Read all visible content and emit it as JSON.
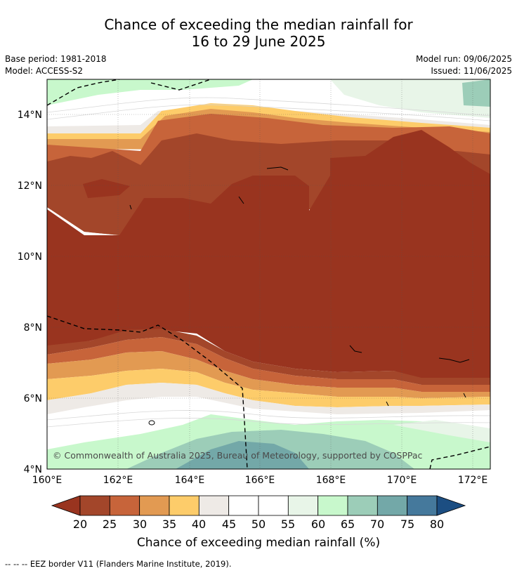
{
  "title_line1": "Chance of exceeding the median rainfall for",
  "title_line2": "16 to 29 June 2025",
  "base_period": "Base period: 1981-2018",
  "model": "Model: ACCESS-S2",
  "model_run": "Model run: 09/06/2025",
  "issued": "Issued: 11/06/2025",
  "map": {
    "lat_labels": [
      "14°N",
      "12°N",
      "10°N",
      "8°N",
      "6°N",
      "4°N"
    ],
    "lon_labels": [
      "160°E",
      "162°E",
      "164°E",
      "166°E",
      "168°E",
      "170°E",
      "172°E"
    ],
    "copyright": "© Commonwealth of Australia 2025, Bureau of Meteorology, supported by COSPPac",
    "region_levels": {
      "north_edge_green": 60,
      "north_white_band": 50,
      "upper_orange": 30,
      "upper_rust": 25,
      "core": 20,
      "lower_rust": 25,
      "lower_orange": 35,
      "lower_yellow": 40,
      "southern_white": 50,
      "southern_green": 65,
      "southern_teal": 70
    }
  },
  "colorbar": {
    "levels": [
      "20",
      "25",
      "30",
      "35",
      "40",
      "45",
      "50",
      "55",
      "60",
      "65",
      "70",
      "75",
      "80"
    ],
    "colors": [
      "#a3462a",
      "#c7643a",
      "#e29a52",
      "#fdcc6a",
      "#eeeae6",
      "#ffffff",
      "#ffffff",
      "#e8f5e8",
      "#c8f8cc",
      "#9ccdb8",
      "#73a8a8",
      "#45799c"
    ],
    "under_color": "#99341f",
    "over_color": "#1c4e82",
    "title": "Chance of exceeding median rainfall (%)"
  },
  "footnote": "--  --  -- EEZ border V11 (Flanders Marine Institute, 2019)."
}
